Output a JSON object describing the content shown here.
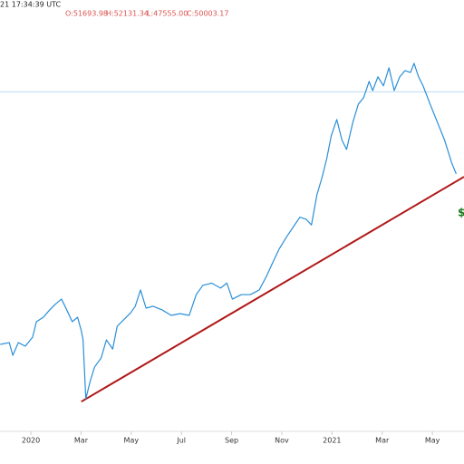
{
  "chart_data": {
    "type": "line",
    "header": {
      "timestamp": "21 17:34:39 UTC",
      "ohlc": [
        "O:51693.98",
        "H:52131.34",
        "L:47555.00",
        "C:50003.17"
      ]
    },
    "x": [
      -1.22,
      -0.86,
      -0.72,
      -0.5,
      -0.22,
      0.07,
      0.22,
      0.5,
      0.75,
      1.0,
      1.22,
      1.43,
      1.65,
      1.86,
      2.01,
      2.08,
      2.19,
      2.37,
      2.54,
      2.8,
      3.01,
      3.26,
      3.44,
      3.73,
      3.98,
      4.16,
      4.37,
      4.59,
      4.87,
      5.23,
      5.59,
      5.95,
      6.31,
      6.59,
      6.85,
      7.2,
      7.56,
      7.81,
      8.03,
      8.39,
      8.75,
      9.1,
      9.39,
      9.64,
      9.89,
      10.18,
      10.47,
      10.72,
      10.97,
      11.18,
      11.4,
      11.61,
      11.79,
      11.97,
      12.19,
      12.4,
      12.58,
      12.83,
      13.05,
      13.26,
      13.48,
      13.62,
      13.83,
      14.05,
      14.27,
      14.48,
      14.7,
      14.91,
      15.13,
      15.27,
      15.45,
      15.63,
      15.91,
      16.2,
      16.49,
      16.77,
      16.95
    ],
    "series": [
      {
        "color": "#2a8fd8",
        "values": [
          6060,
          6150,
          5530,
          6150,
          5970,
          6440,
          7320,
          7600,
          8080,
          8510,
          8840,
          8080,
          7320,
          7600,
          6790,
          6290,
          3850,
          4480,
          5020,
          5410,
          6290,
          5830,
          7050,
          7490,
          7890,
          8330,
          9540,
          8200,
          8330,
          8080,
          7720,
          7830,
          7720,
          9180,
          9910,
          10100,
          9690,
          10100,
          8840,
          9180,
          9180,
          9540,
          10700,
          12000,
          13400,
          14800,
          16200,
          17500,
          17200,
          16400,
          21100,
          24500,
          28500,
          34500,
          39500,
          33200,
          30800,
          38600,
          44900,
          47400,
          54300,
          50300,
          56400,
          52300,
          60800,
          50300,
          56400,
          59400,
          58500,
          63100,
          56400,
          52300,
          44900,
          38600,
          33200,
          27500,
          25100
        ]
      }
    ],
    "xlim": [
      -1.23,
      17.26
    ],
    "ylim": [
      2640,
      107000
    ],
    "log_scale": true,
    "xticks": [
      {
        "value": 0,
        "label": "2020"
      },
      {
        "value": 2,
        "label": "Mar"
      },
      {
        "value": 4,
        "label": "May"
      },
      {
        "value": 6,
        "label": "Jul"
      },
      {
        "value": 8,
        "label": "Sep"
      },
      {
        "value": 10,
        "label": "Nov"
      },
      {
        "value": 12,
        "label": "2021"
      },
      {
        "value": 14,
        "label": "Mar"
      },
      {
        "value": 16,
        "label": "May"
      }
    ],
    "price_line": {
      "value": 49800,
      "color": "#b8dcf5"
    },
    "trend_line": {
      "x": [
        2.01,
        17.26
      ],
      "y": [
        3760,
        24500
      ],
      "color": "#b01818"
    },
    "annotation": {
      "text": "$",
      "color": "#1a7a1a"
    }
  }
}
